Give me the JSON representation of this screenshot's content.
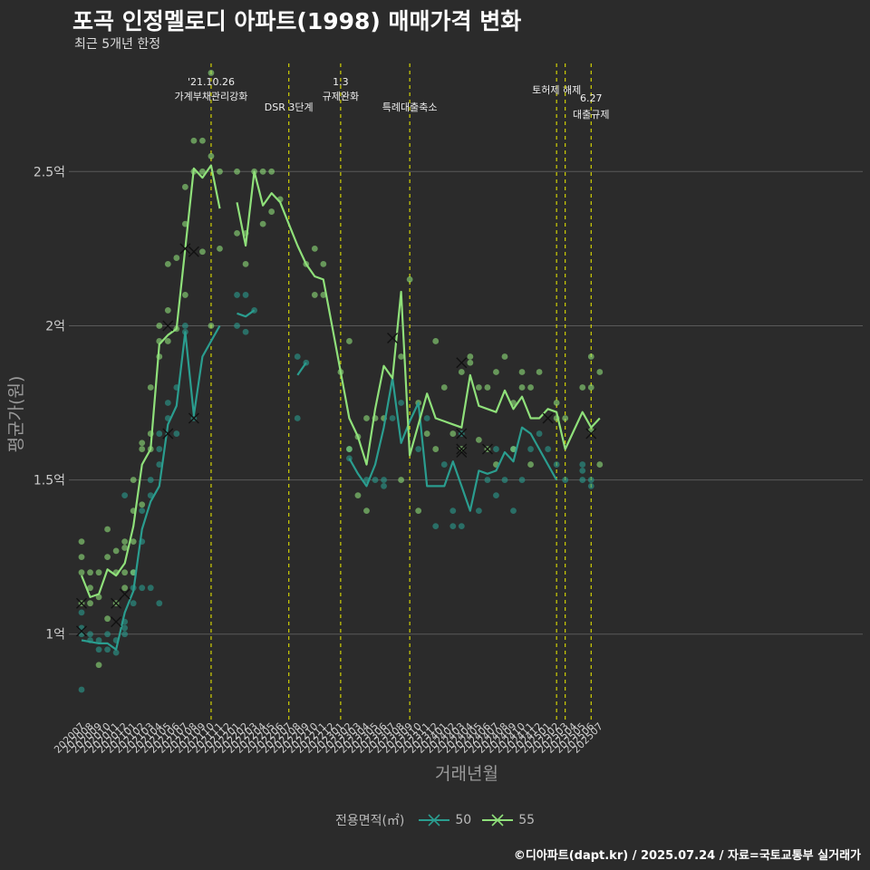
{
  "header": {
    "title": "포곡 인정멜로디 아파트(1998) 매매가격 변화",
    "subtitle": "최근 5개년 한정"
  },
  "caption": "©디아파트(dapt.kr) / 2025.07.24 / 자료=국토교통부 실거래가",
  "colors": {
    "background": "#2b2b2b",
    "s50": "#2a9d8f",
    "s55": "#8fe07a",
    "event_line": "#e0e000",
    "grid": "#5a5a5a"
  },
  "chart_data": {
    "type": "line",
    "xlabel": "거래년월",
    "ylabel": "평균가(원)",
    "ylim": [
      0.72,
      2.88
    ],
    "y_ticks": [
      {
        "value": 1.0,
        "label": "1억"
      },
      {
        "value": 1.5,
        "label": "1.5억"
      },
      {
        "value": 2.0,
        "label": "2억"
      },
      {
        "value": 2.5,
        "label": "2.5억"
      }
    ],
    "categories": [
      "202007",
      "202008",
      "202009",
      "202010",
      "202011",
      "202012",
      "202101",
      "202102",
      "202103",
      "202104",
      "202105",
      "202106",
      "202107",
      "202108",
      "202109",
      "202110",
      "202111",
      "202112",
      "202201",
      "202202",
      "202203",
      "202204",
      "202205",
      "202206",
      "202207",
      "202208",
      "202209",
      "202210",
      "202211",
      "202212",
      "202301",
      "202302",
      "202303",
      "202304",
      "202305",
      "202306",
      "202307",
      "202308",
      "202309",
      "202310",
      "202311",
      "202312",
      "202401",
      "202402",
      "202403",
      "202404",
      "202405",
      "202406",
      "202407",
      "202408",
      "202409",
      "202410",
      "202411",
      "202412",
      "202501",
      "202502",
      "202503",
      "202504",
      "202505",
      "202506",
      "202507"
    ],
    "legend_title": "전용면적(㎡)",
    "series": [
      {
        "name": "50",
        "color": "#2a9d8f",
        "values": [
          0.98,
          0.975,
          0.97,
          0.97,
          0.95,
          1.07,
          1.14,
          1.34,
          1.43,
          1.48,
          1.68,
          1.74,
          1.98,
          1.71,
          1.9,
          1.95,
          2.0,
          null,
          2.04,
          2.03,
          2.05,
          null,
          null,
          null,
          null,
          1.84,
          1.88,
          null,
          null,
          null,
          null,
          1.57,
          1.52,
          1.48,
          1.55,
          1.67,
          1.83,
          1.62,
          1.69,
          1.75,
          1.48,
          1.48,
          1.48,
          1.56,
          1.48,
          1.4,
          1.53,
          1.52,
          1.53,
          1.59,
          1.56,
          1.67,
          1.65,
          1.6,
          1.55,
          1.5,
          null,
          null,
          null,
          null,
          null
        ]
      },
      {
        "name": "55",
        "color": "#8fe07a",
        "values": [
          1.19,
          1.12,
          1.13,
          1.21,
          1.19,
          1.23,
          1.35,
          1.55,
          1.6,
          1.94,
          1.97,
          1.99,
          2.25,
          2.51,
          2.48,
          2.52,
          2.38,
          null,
          2.4,
          2.26,
          2.5,
          2.39,
          2.43,
          2.4,
          2.33,
          2.26,
          2.2,
          2.16,
          2.15,
          2.0,
          1.85,
          1.7,
          1.64,
          1.55,
          1.73,
          1.87,
          1.83,
          2.11,
          1.58,
          1.68,
          1.78,
          1.7,
          1.69,
          1.68,
          1.67,
          1.84,
          1.74,
          1.73,
          1.72,
          1.79,
          1.73,
          1.77,
          1.7,
          1.7,
          1.73,
          1.72,
          1.6,
          1.66,
          1.72,
          1.67,
          1.7
        ]
      }
    ],
    "events": [
      {
        "index": 15,
        "label_lines": [
          "'21.10.26",
          "가계부채관리강화"
        ],
        "level": 0
      },
      {
        "index": 24,
        "label_lines": [
          "DSR 3단계"
        ],
        "level": 1
      },
      {
        "index": 30,
        "label_lines": [
          "1.3",
          "규제완화"
        ],
        "level": 0
      },
      {
        "index": 38,
        "label_lines": [
          "특례대출축소"
        ],
        "level": 1
      },
      {
        "index": 55,
        "label_lines": [
          "토허제 해제"
        ],
        "level": 0
      },
      {
        "index": 56,
        "label_lines": [],
        "level": 0
      },
      {
        "index": 59,
        "label_lines": [
          "6.27",
          "대출규제"
        ],
        "level": 2
      }
    ],
    "scatter_50": [
      [
        0,
        0.82
      ],
      [
        0,
        1.0
      ],
      [
        0,
        1.02
      ],
      [
        0,
        1.07
      ],
      [
        1,
        1.0
      ],
      [
        1,
        0.98
      ],
      [
        2,
        0.95
      ],
      [
        2,
        0.98
      ],
      [
        3,
        0.95
      ],
      [
        3,
        1.0
      ],
      [
        4,
        0.94
      ],
      [
        4,
        0.98
      ],
      [
        5,
        1.0
      ],
      [
        5,
        1.02
      ],
      [
        5,
        1.04
      ],
      [
        5,
        1.45
      ],
      [
        6,
        1.1
      ],
      [
        6,
        1.15
      ],
      [
        6,
        1.2
      ],
      [
        7,
        1.4
      ],
      [
        7,
        1.3
      ],
      [
        7,
        1.15
      ],
      [
        8,
        1.45
      ],
      [
        8,
        1.5
      ],
      [
        8,
        1.15
      ],
      [
        9,
        1.6
      ],
      [
        9,
        1.55
      ],
      [
        9,
        1.65
      ],
      [
        9,
        1.1
      ],
      [
        10,
        1.7
      ],
      [
        10,
        1.75
      ],
      [
        11,
        1.8
      ],
      [
        11,
        1.65
      ],
      [
        12,
        1.98
      ],
      [
        12,
        2.0
      ],
      [
        13,
        1.7
      ],
      [
        18,
        2.0
      ],
      [
        18,
        2.1
      ],
      [
        19,
        1.98
      ],
      [
        19,
        2.1
      ],
      [
        20,
        2.05
      ],
      [
        25,
        1.9
      ],
      [
        25,
        1.7
      ],
      [
        26,
        1.88
      ],
      [
        31,
        1.57
      ],
      [
        31,
        1.6
      ],
      [
        33,
        1.5
      ],
      [
        34,
        1.5
      ],
      [
        35,
        1.48
      ],
      [
        35,
        1.5
      ],
      [
        36,
        1.7
      ],
      [
        37,
        1.75
      ],
      [
        39,
        1.6
      ],
      [
        40,
        1.7
      ],
      [
        41,
        1.35
      ],
      [
        42,
        1.55
      ],
      [
        43,
        1.35
      ],
      [
        43,
        1.4
      ],
      [
        44,
        1.35
      ],
      [
        44,
        1.65
      ],
      [
        46,
        1.4
      ],
      [
        47,
        1.5
      ],
      [
        48,
        1.45
      ],
      [
        48,
        1.6
      ],
      [
        49,
        1.5
      ],
      [
        50,
        1.6
      ],
      [
        50,
        1.4
      ],
      [
        51,
        1.5
      ],
      [
        52,
        1.6
      ],
      [
        53,
        1.65
      ],
      [
        54,
        1.6
      ],
      [
        55,
        1.55
      ],
      [
        56,
        1.5
      ],
      [
        58,
        1.55
      ],
      [
        58,
        1.53
      ],
      [
        58,
        1.5
      ],
      [
        59,
        1.5
      ],
      [
        59,
        1.48
      ]
    ],
    "scatter_55": [
      [
        0,
        1.1
      ],
      [
        0,
        1.2
      ],
      [
        0,
        1.3
      ],
      [
        0,
        1.25
      ],
      [
        1,
        1.1
      ],
      [
        1,
        1.15
      ],
      [
        1,
        1.2
      ],
      [
        2,
        1.12
      ],
      [
        2,
        0.9
      ],
      [
        2,
        1.2
      ],
      [
        3,
        1.05
      ],
      [
        3,
        1.25
      ],
      [
        3,
        1.34
      ],
      [
        4,
        1.2
      ],
      [
        4,
        1.27
      ],
      [
        4,
        1.1
      ],
      [
        5,
        1.3
      ],
      [
        5,
        1.28
      ],
      [
        5,
        1.2
      ],
      [
        5,
        1.15
      ],
      [
        6,
        1.5
      ],
      [
        6,
        1.4
      ],
      [
        6,
        1.3
      ],
      [
        6,
        1.2
      ],
      [
        7,
        1.6
      ],
      [
        7,
        1.62
      ],
      [
        7,
        1.42
      ],
      [
        8,
        1.65
      ],
      [
        8,
        1.8
      ],
      [
        8,
        1.6
      ],
      [
        9,
        1.95
      ],
      [
        9,
        2.0
      ],
      [
        9,
        1.9
      ],
      [
        10,
        2.2
      ],
      [
        10,
        2.05
      ],
      [
        10,
        1.95
      ],
      [
        11,
        2.22
      ],
      [
        11,
        1.99
      ],
      [
        12,
        2.33
      ],
      [
        12,
        2.45
      ],
      [
        12,
        2.1
      ],
      [
        13,
        2.6
      ],
      [
        13,
        2.5
      ],
      [
        14,
        2.6
      ],
      [
        14,
        2.5
      ],
      [
        14,
        2.24
      ],
      [
        15,
        2.55
      ],
      [
        15,
        2.82
      ],
      [
        15,
        2.0
      ],
      [
        16,
        2.5
      ],
      [
        16,
        2.25
      ],
      [
        18,
        2.5
      ],
      [
        18,
        2.3
      ],
      [
        19,
        2.3
      ],
      [
        19,
        2.2
      ],
      [
        20,
        2.5
      ],
      [
        21,
        2.5
      ],
      [
        21,
        2.33
      ],
      [
        22,
        2.5
      ],
      [
        22,
        2.37
      ],
      [
        23,
        2.41
      ],
      [
        26,
        2.2
      ],
      [
        27,
        2.25
      ],
      [
        27,
        2.1
      ],
      [
        28,
        2.2
      ],
      [
        28,
        2.1
      ],
      [
        30,
        1.85
      ],
      [
        31,
        1.95
      ],
      [
        31,
        1.6
      ],
      [
        32,
        1.64
      ],
      [
        32,
        1.45
      ],
      [
        33,
        1.7
      ],
      [
        33,
        1.4
      ],
      [
        34,
        1.7
      ],
      [
        35,
        1.7
      ],
      [
        37,
        1.9
      ],
      [
        37,
        1.5
      ],
      [
        38,
        2.15
      ],
      [
        39,
        1.75
      ],
      [
        39,
        1.4
      ],
      [
        40,
        1.65
      ],
      [
        41,
        1.95
      ],
      [
        41,
        1.6
      ],
      [
        42,
        1.8
      ],
      [
        43,
        1.65
      ],
      [
        44,
        1.6
      ],
      [
        44,
        1.85
      ],
      [
        45,
        1.88
      ],
      [
        45,
        1.9
      ],
      [
        46,
        1.63
      ],
      [
        46,
        1.8
      ],
      [
        47,
        1.8
      ],
      [
        47,
        1.6
      ],
      [
        48,
        1.85
      ],
      [
        48,
        1.55
      ],
      [
        49,
        1.9
      ],
      [
        50,
        1.75
      ],
      [
        50,
        1.6
      ],
      [
        51,
        1.85
      ],
      [
        51,
        1.8
      ],
      [
        52,
        1.8
      ],
      [
        52,
        1.55
      ],
      [
        53,
        1.85
      ],
      [
        55,
        1.75
      ],
      [
        55,
        1.7
      ],
      [
        56,
        1.7
      ],
      [
        58,
        1.8
      ],
      [
        59,
        1.9
      ],
      [
        59,
        1.8
      ],
      [
        59,
        1.66
      ],
      [
        60,
        1.85
      ],
      [
        60,
        1.55
      ]
    ],
    "x_markers_50": [
      [
        0,
        1.01
      ],
      [
        4,
        1.04
      ],
      [
        10,
        1.65
      ],
      [
        13,
        1.7
      ],
      [
        44,
        1.65
      ],
      [
        47,
        1.6
      ]
    ],
    "x_markers_55": [
      [
        0,
        1.1
      ],
      [
        4,
        1.1
      ],
      [
        5,
        1.13
      ],
      [
        10,
        2.0
      ],
      [
        12,
        2.25
      ],
      [
        13,
        2.24
      ],
      [
        36,
        1.96
      ],
      [
        44,
        1.88
      ],
      [
        44,
        1.6
      ],
      [
        44,
        1.59
      ],
      [
        54,
        1.7
      ],
      [
        59,
        1.65
      ]
    ]
  }
}
